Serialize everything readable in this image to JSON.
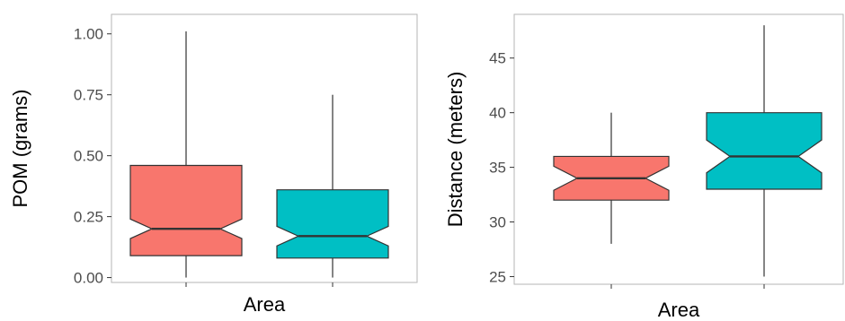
{
  "colors": {
    "series_1": "#F8766D",
    "series_2": "#00BFC4",
    "frame": "#b5b5b5"
  },
  "chart_data": [
    {
      "type": "box",
      "xlabel": "Area",
      "ylabel": "POM (grams)",
      "ylim": [
        -0.02,
        1.08
      ],
      "yticks": [
        0,
        0.25,
        0.5,
        0.75,
        1
      ],
      "yticklabels": [
        "0.00",
        "0.25",
        "0.50",
        "0.75",
        "1.00"
      ],
      "grid": false,
      "legend": "none",
      "boxes": [
        {
          "min": 0.0,
          "q1": 0.09,
          "median": 0.2,
          "q3": 0.46,
          "max": 1.01,
          "notch_low": 0.16,
          "notch_high": 0.24,
          "color": "#F8766D"
        },
        {
          "min": 0.0,
          "q1": 0.08,
          "median": 0.17,
          "q3": 0.36,
          "max": 0.75,
          "notch_low": 0.13,
          "notch_high": 0.21,
          "color": "#00BFC4"
        }
      ]
    },
    {
      "type": "box",
      "xlabel": "Area",
      "ylabel": "Distance (meters)",
      "ylim": [
        24.3,
        49
      ],
      "yticks": [
        25,
        30,
        35,
        40,
        45
      ],
      "yticklabels": [
        "25",
        "30",
        "35",
        "40",
        "45"
      ],
      "grid": false,
      "legend": "none",
      "boxes": [
        {
          "min": 28.0,
          "q1": 32.0,
          "median": 34.0,
          "q3": 36.0,
          "max": 40.0,
          "notch_low": 32.9,
          "notch_high": 35.1,
          "color": "#F8766D"
        },
        {
          "min": 25.0,
          "q1": 33.0,
          "median": 36.0,
          "q3": 40.0,
          "max": 48.0,
          "notch_low": 34.5,
          "notch_high": 37.5,
          "color": "#00BFC4"
        }
      ]
    }
  ]
}
